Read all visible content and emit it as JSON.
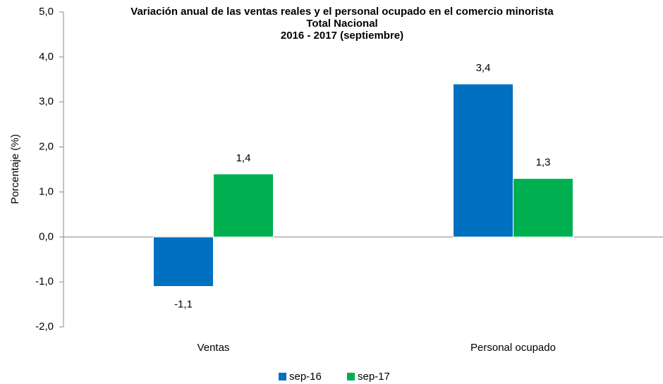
{
  "chart_data": {
    "type": "bar",
    "title": "Variación anual de las ventas reales y el personal ocupado en el comercio minorista",
    "subtitle": "Total Nacional",
    "period": "2016 - 2017 (septiembre)",
    "y_axis_label": "Porcentaje (%)",
    "categories": [
      "Ventas",
      "Personal ocupado"
    ],
    "series": [
      {
        "name": "sep-16",
        "color": "#0070c0",
        "values": [
          -1.1,
          3.4
        ],
        "value_labels": [
          "-1,1",
          "3,4"
        ]
      },
      {
        "name": "sep-17",
        "color": "#00b050",
        "values": [
          1.4,
          1.3
        ],
        "value_labels": [
          "1,4",
          "1,3"
        ]
      }
    ],
    "ylim": [
      -2,
      5
    ],
    "yticks": [
      {
        "value": -2,
        "label": "-2,0"
      },
      {
        "value": -1,
        "label": "-1,0"
      },
      {
        "value": 0,
        "label": "0,0"
      },
      {
        "value": 1,
        "label": "1,0"
      },
      {
        "value": 2,
        "label": "2,0"
      },
      {
        "value": 3,
        "label": "3,0"
      },
      {
        "value": 4,
        "label": "4,0"
      },
      {
        "value": 5,
        "label": "5,0"
      }
    ],
    "grid": false,
    "legend": "bottom"
  }
}
